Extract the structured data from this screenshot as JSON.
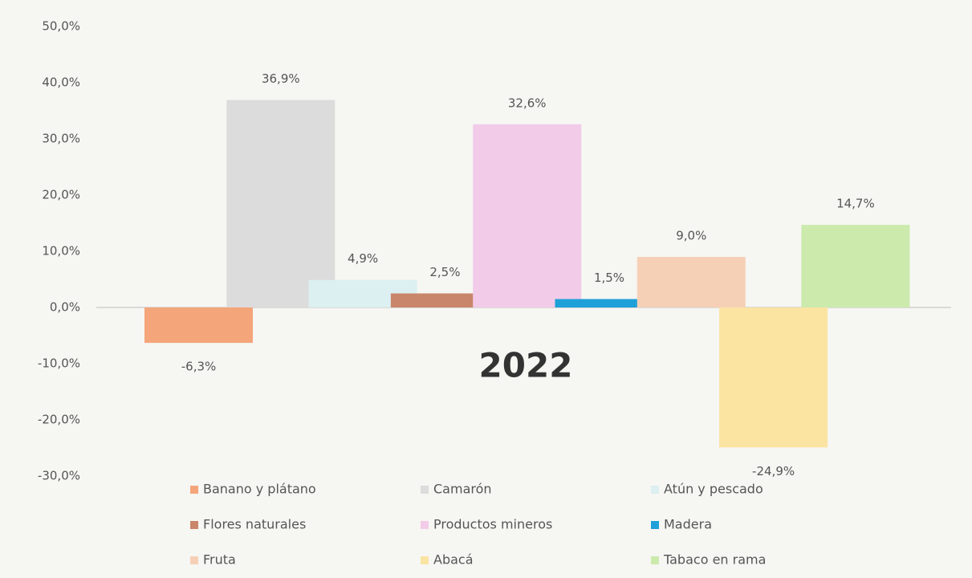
{
  "chart_data": {
    "type": "bar",
    "categories": [
      "2022"
    ],
    "series": [
      {
        "name": "Banano y plátano",
        "color": "#f4a57a",
        "values": [
          -6.3
        ],
        "value_labels": [
          "-6,3%"
        ]
      },
      {
        "name": "Camarón",
        "color": "#dcdcdc",
        "values": [
          36.9
        ],
        "value_labels": [
          "36,9%"
        ]
      },
      {
        "name": "Atún y pescado",
        "color": "#dceff1",
        "values": [
          4.9
        ],
        "value_labels": [
          "4,9%"
        ]
      },
      {
        "name": "Flores naturales",
        "color": "#c9866a",
        "values": [
          2.5
        ],
        "value_labels": [
          "2,5%"
        ]
      },
      {
        "name": "Productos mineros",
        "color": "#f2cbe9",
        "values": [
          32.6
        ],
        "value_labels": [
          "32,6%"
        ]
      },
      {
        "name": "Madera",
        "color": "#1fa0d8",
        "values": [
          1.5
        ],
        "value_labels": [
          "1,5%"
        ]
      },
      {
        "name": "Fruta",
        "color": "#f6d0b6",
        "values": [
          9.0
        ],
        "value_labels": [
          "9,0%"
        ]
      },
      {
        "name": "Abacá",
        "color": "#fbe3a2",
        "values": [
          -24.9
        ],
        "value_labels": [
          "-24,9%"
        ]
      },
      {
        "name": "Tabaco en rama",
        "color": "#cbeaac",
        "values": [
          14.7
        ],
        "value_labels": [
          "14,7%"
        ]
      }
    ],
    "ylim": [
      -30,
      50
    ],
    "yticks": [
      {
        "value": -30,
        "label": "-30,0%"
      },
      {
        "value": -20,
        "label": "-20,0%"
      },
      {
        "value": -10,
        "label": "-10,0%"
      },
      {
        "value": 0,
        "label": "0,0%"
      },
      {
        "value": 10,
        "label": "10,0%"
      },
      {
        "value": 20,
        "label": "20,0%"
      },
      {
        "value": 30,
        "label": "30,0%"
      },
      {
        "value": 40,
        "label": "40,0%"
      },
      {
        "value": 50,
        "label": "50,0%"
      }
    ],
    "grid": false
  }
}
